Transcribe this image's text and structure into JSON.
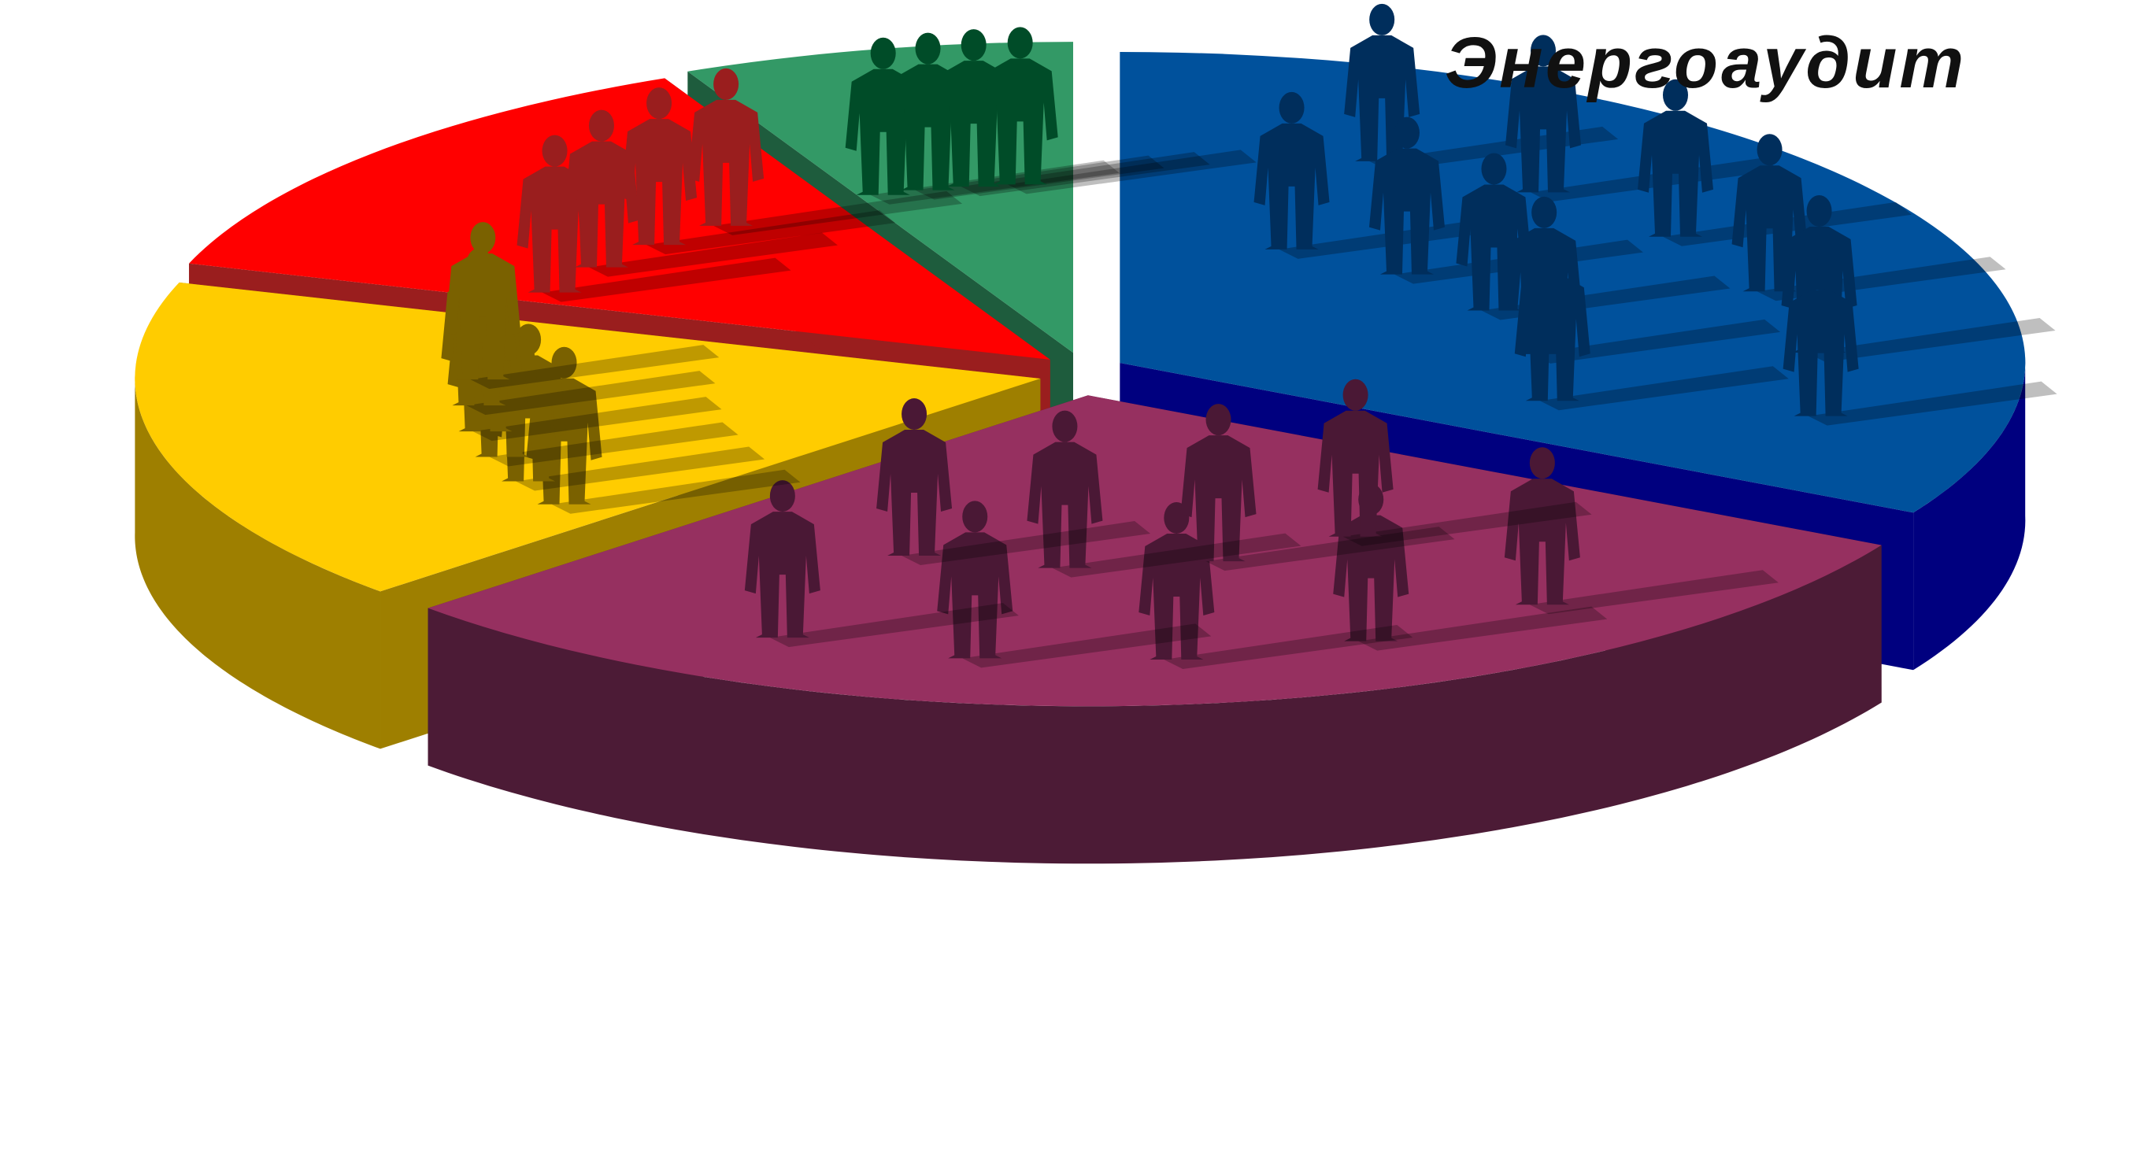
{
  "chart_data": {
    "type": "pie",
    "title": "Энергоаудит",
    "style": "3d-exploded",
    "slices": [
      {
        "value": 33,
        "color": "#00519C",
        "side_color": "#00007F",
        "figure_color": "#002E5C",
        "figure_count": 11,
        "icon": "person-silhouette-icon"
      },
      {
        "value": 30,
        "color": "#963060",
        "side_color": "#4C1B36",
        "figure_color": "#4A1835",
        "figure_count": 9,
        "icon": "person-silhouette-icon"
      },
      {
        "value": 17,
        "color": "#FFCC00",
        "side_color": "#9E7F00",
        "figure_color": "#7A6100",
        "figure_count": 6,
        "icon": "person-silhouette-icon"
      },
      {
        "value": 13,
        "color": "#FF0000",
        "side_color": "#9A1E1E",
        "figure_color": "#9A1E1E",
        "figure_count": 4,
        "icon": "person-silhouette-icon"
      },
      {
        "value": 7,
        "color": "#339966",
        "side_color": "#1E5C3D",
        "figure_color": "#004C28",
        "figure_count": 4,
        "icon": "person-silhouette-icon"
      }
    ]
  }
}
